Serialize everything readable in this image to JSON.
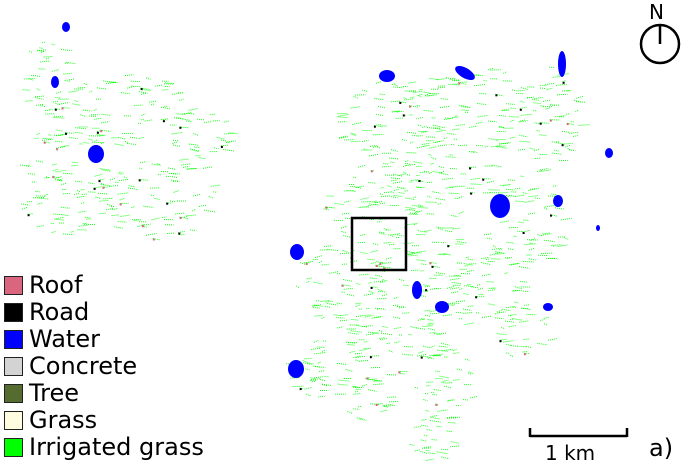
{
  "legend": {
    "items": [
      {
        "label": "Roof",
        "color": "#d9657e"
      },
      {
        "label": "Road",
        "color": "#000000"
      },
      {
        "label": "Water",
        "color": "#0000ff"
      },
      {
        "label": "Concrete",
        "color": "#d3d3d3"
      },
      {
        "label": "Tree",
        "color": "#556b2f"
      },
      {
        "label": "Grass",
        "color": "#fffde0"
      },
      {
        "label": "Irrigated grass",
        "color": "#00ff00"
      }
    ]
  },
  "north_arrow": {
    "label": "N",
    "icon": "north-arrow-icon"
  },
  "scale_bar": {
    "label": "1 km"
  },
  "panel_label": "a)"
}
